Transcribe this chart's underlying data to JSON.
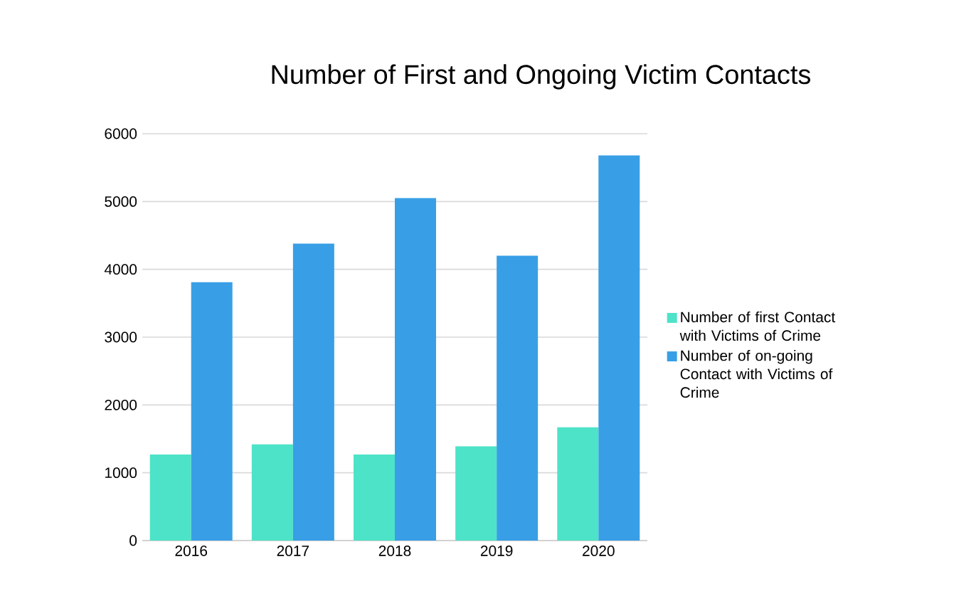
{
  "chart_data": {
    "type": "bar",
    "title": "Number of First and Ongoing Victim Contacts",
    "categories": [
      "2016",
      "2017",
      "2018",
      "2019",
      "2020"
    ],
    "series": [
      {
        "name": "Number of first Contact with Victims of Crime",
        "color": "#4de3c8",
        "values": [
          1270,
          1420,
          1270,
          1390,
          1670
        ]
      },
      {
        "name": "Number of on-going Contact with Victims of Crime",
        "color": "#389fe6",
        "values": [
          3810,
          4380,
          5050,
          4200,
          5680
        ]
      }
    ],
    "ylim": [
      0,
      6000
    ],
    "yticks": [
      0,
      1000,
      2000,
      3000,
      4000,
      5000,
      6000
    ],
    "grid": "y",
    "legend": "right"
  }
}
